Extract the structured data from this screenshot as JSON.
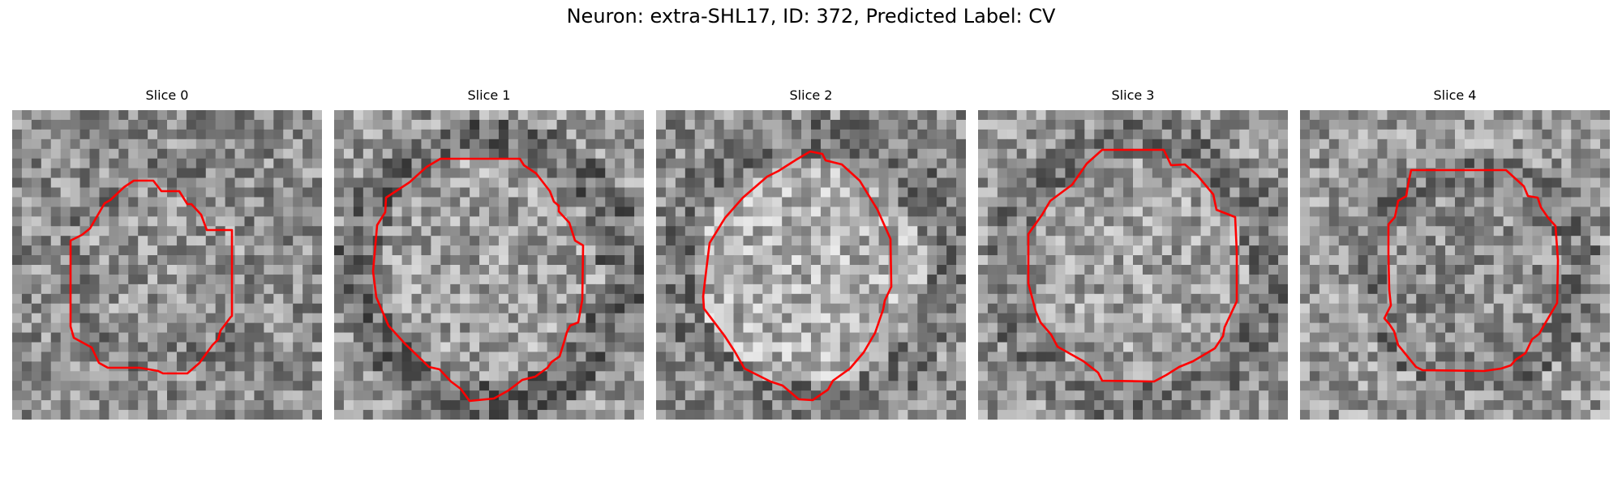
{
  "figure": {
    "title": "Neuron: extra-SHL17, ID: 372, Predicted Label: CV",
    "contour_color": "#ff0000"
  },
  "slices": [
    {
      "label": "Slice 0",
      "contour": "small ring centered in the tile"
    },
    {
      "label": "Slice 1",
      "contour": "large ring with a dark membrane band"
    },
    {
      "label": "Slice 2",
      "contour": "large ring with a bright interior"
    },
    {
      "label": "Slice 3",
      "contour": "large ring with a dark lower-right edge"
    },
    {
      "label": "Slice 4",
      "contour": "ring offset toward the upper right"
    }
  ]
}
